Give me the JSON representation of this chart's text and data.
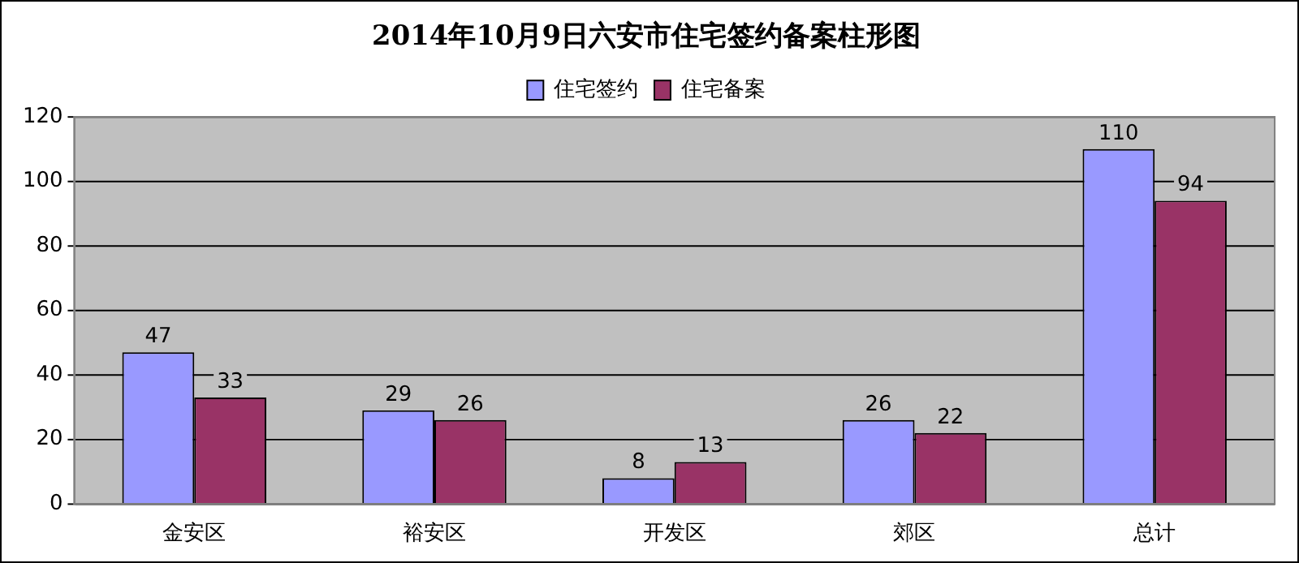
{
  "chart_data": {
    "type": "bar",
    "title": "2014年10月9日六安市住宅签约备案柱形图",
    "categories": [
      "金安区",
      "裕安区",
      "开发区",
      "郊区",
      "总计"
    ],
    "series": [
      {
        "name": "住宅签约",
        "color": "#9999ff",
        "values": [
          47,
          29,
          8,
          26,
          110
        ]
      },
      {
        "name": "住宅备案",
        "color": "#993366",
        "values": [
          33,
          26,
          13,
          22,
          94
        ]
      }
    ],
    "ylim": [
      0,
      120
    ],
    "yticks": [
      0,
      20,
      40,
      60,
      80,
      100,
      120
    ],
    "grid": "y",
    "legend": "top",
    "data_labels": true
  }
}
